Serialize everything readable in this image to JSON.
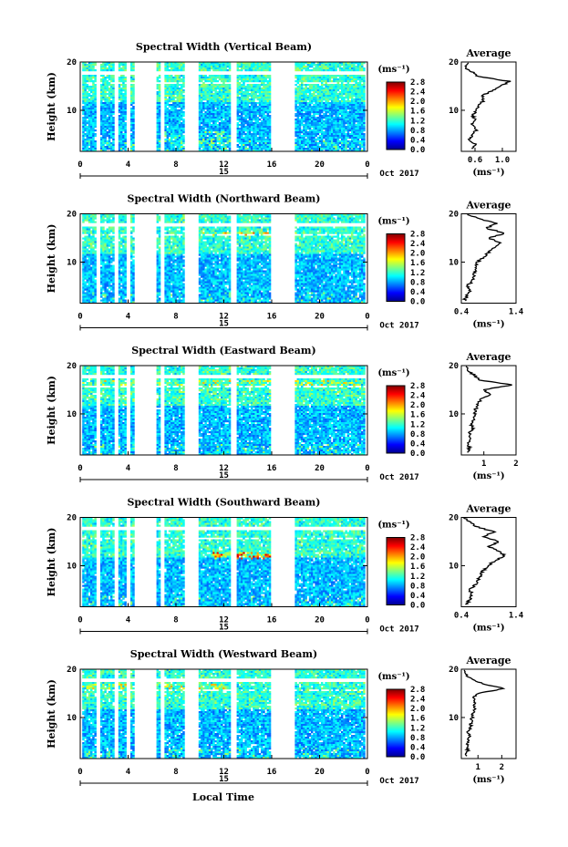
{
  "figure": {
    "date_label": "Oct 2017",
    "day_label": "15",
    "xlabel": "Local Time",
    "ylabel": "Height (km)",
    "avg_title": "Average",
    "cbar_unit": "(ms⁻¹)",
    "avg_xunit": "(ms⁻¹)"
  },
  "chart_data": [
    {
      "type": "heatmap",
      "title": "Spectral Width (Vertical Beam)",
      "xlim": [
        0,
        24
      ],
      "ylim": [
        1.5,
        20
      ],
      "x_ticks": [
        "0",
        "4",
        "8",
        "12",
        "16",
        "20",
        "0"
      ],
      "y_ticks": [
        "20",
        "10"
      ],
      "colorbar": {
        "range": [
          0.0,
          2.8
        ],
        "ticks": [
          "2.8",
          "2.4",
          "2.0",
          "1.6",
          "1.2",
          "0.8",
          "0.4",
          "0.0"
        ],
        "colormap": "jet"
      },
      "data_gaps_hours": [
        [
          0,
          0.1
        ],
        [
          1.3,
          1.6
        ],
        [
          2.8,
          3.1
        ],
        [
          3.7,
          4.1
        ],
        [
          4.4,
          6.3
        ],
        [
          6.7,
          6.9
        ],
        [
          8.7,
          9.8
        ],
        [
          12.5,
          13.0
        ],
        [
          15.8,
          17.8
        ],
        [
          23.7,
          24
        ]
      ],
      "high_values_at": [
        {
          "hours": [
            7.0,
            12.5
          ],
          "km": [
            3,
            6
          ],
          "value": 1.6
        }
      ],
      "average_profile": {
        "xlim": [
          0.4,
          1.2
        ],
        "x_ticks": [
          "0.6",
          "1.0"
        ],
        "values": [
          [
            0.55,
            2
          ],
          [
            0.6,
            3
          ],
          [
            0.5,
            4
          ],
          [
            0.58,
            5
          ],
          [
            0.62,
            6
          ],
          [
            0.55,
            7
          ],
          [
            0.6,
            8
          ],
          [
            0.57,
            9
          ],
          [
            0.62,
            10
          ],
          [
            0.66,
            11
          ],
          [
            0.72,
            12
          ],
          [
            0.7,
            13
          ],
          [
            0.85,
            14
          ],
          [
            0.98,
            15
          ],
          [
            1.1,
            16
          ],
          [
            0.65,
            17
          ],
          [
            0.55,
            18
          ],
          [
            0.45,
            19
          ],
          [
            0.5,
            20
          ]
        ]
      }
    },
    {
      "type": "heatmap",
      "title": "Spectral Width (Northward Beam)",
      "xlim": [
        0,
        24
      ],
      "ylim": [
        1.5,
        20
      ],
      "x_ticks": [
        "0",
        "4",
        "8",
        "12",
        "16",
        "20",
        "0"
      ],
      "y_ticks": [
        "20",
        "10"
      ],
      "colorbar": {
        "range": [
          0.0,
          2.8
        ],
        "ticks": [
          "2.8",
          "2.4",
          "2.0",
          "1.6",
          "1.2",
          "0.8",
          "0.4",
          "0.0"
        ],
        "colormap": "jet"
      },
      "data_gaps_hours": [
        [
          0,
          0.1
        ],
        [
          1.3,
          1.6
        ],
        [
          2.8,
          3.1
        ],
        [
          3.7,
          4.1
        ],
        [
          4.4,
          6.3
        ],
        [
          6.7,
          6.9
        ],
        [
          8.7,
          9.8
        ],
        [
          12.5,
          13.0
        ],
        [
          15.8,
          17.8
        ],
        [
          23.7,
          24
        ]
      ],
      "high_values_at": [
        {
          "hours": [
            10,
            18
          ],
          "km": [
            15.5,
            16.5
          ],
          "value": 2.2
        }
      ],
      "average_profile": {
        "xlim": [
          0.4,
          1.4
        ],
        "x_ticks": [
          "0.4",
          "1.4"
        ],
        "values": [
          [
            0.45,
            2
          ],
          [
            0.5,
            3
          ],
          [
            0.55,
            4
          ],
          [
            0.5,
            5
          ],
          [
            0.6,
            6
          ],
          [
            0.62,
            7
          ],
          [
            0.65,
            8
          ],
          [
            0.68,
            9
          ],
          [
            0.7,
            10
          ],
          [
            0.8,
            11
          ],
          [
            0.9,
            12
          ],
          [
            1.0,
            13
          ],
          [
            1.1,
            14
          ],
          [
            0.9,
            15
          ],
          [
            1.2,
            16
          ],
          [
            0.85,
            17
          ],
          [
            1.05,
            18
          ],
          [
            0.7,
            19
          ],
          [
            0.5,
            20
          ]
        ]
      }
    },
    {
      "type": "heatmap",
      "title": "Spectral Width (Eastward Beam)",
      "xlim": [
        0,
        24
      ],
      "ylim": [
        1.5,
        20
      ],
      "x_ticks": [
        "0",
        "4",
        "8",
        "12",
        "16",
        "20",
        "0"
      ],
      "y_ticks": [
        "20",
        "10"
      ],
      "colorbar": {
        "range": [
          0.0,
          2.8
        ],
        "ticks": [
          "2.8",
          "2.4",
          "2.0",
          "1.6",
          "1.2",
          "0.8",
          "0.4",
          "0.0"
        ],
        "colormap": "jet"
      },
      "data_gaps_hours": [
        [
          0,
          0.1
        ],
        [
          1.3,
          1.6
        ],
        [
          2.8,
          3.1
        ],
        [
          3.7,
          4.1
        ],
        [
          4.4,
          6.3
        ],
        [
          6.7,
          6.9
        ],
        [
          8.7,
          9.8
        ],
        [
          12.5,
          13.0
        ],
        [
          15.8,
          17.8
        ],
        [
          23.7,
          24
        ]
      ],
      "high_values_at": [
        {
          "hours": [
            0,
            24
          ],
          "km": [
            16,
            17
          ],
          "value": 2.0
        }
      ],
      "average_profile": {
        "xlim": [
          0.3,
          2.0
        ],
        "x_ticks": [
          "1",
          "2"
        ],
        "values": [
          [
            0.5,
            2
          ],
          [
            0.55,
            3
          ],
          [
            0.5,
            4
          ],
          [
            0.6,
            5
          ],
          [
            0.55,
            6
          ],
          [
            0.65,
            7
          ],
          [
            0.6,
            8
          ],
          [
            0.7,
            9
          ],
          [
            0.72,
            10
          ],
          [
            0.75,
            11
          ],
          [
            0.8,
            12
          ],
          [
            0.9,
            13
          ],
          [
            1.2,
            14
          ],
          [
            1.0,
            15
          ],
          [
            1.9,
            16
          ],
          [
            0.9,
            17
          ],
          [
            0.7,
            18
          ],
          [
            0.5,
            19
          ],
          [
            0.45,
            20
          ]
        ]
      }
    },
    {
      "type": "heatmap",
      "title": "Spectral Width (Southward Beam)",
      "xlim": [
        0,
        24
      ],
      "ylim": [
        1.5,
        20
      ],
      "x_ticks": [
        "0",
        "4",
        "8",
        "12",
        "16",
        "20",
        "0"
      ],
      "y_ticks": [
        "20",
        "10"
      ],
      "colorbar": {
        "range": [
          0.0,
          2.8
        ],
        "ticks": [
          "2.8",
          "2.4",
          "2.0",
          "1.6",
          "1.2",
          "0.8",
          "0.4",
          "0.0"
        ],
        "colormap": "jet"
      },
      "data_gaps_hours": [
        [
          0,
          0.1
        ],
        [
          1.3,
          1.6
        ],
        [
          2.8,
          3.1
        ],
        [
          3.7,
          4.1
        ],
        [
          4.4,
          6.3
        ],
        [
          6.7,
          6.9
        ],
        [
          8.7,
          9.8
        ],
        [
          12.5,
          13.0
        ],
        [
          15.8,
          17.8
        ],
        [
          23.7,
          24
        ]
      ],
      "high_values_at": [
        {
          "hours": [
            11,
            16
          ],
          "km": [
            11.5,
            13
          ],
          "value": 2.6
        }
      ],
      "average_profile": {
        "xlim": [
          0.4,
          1.4
        ],
        "x_ticks": [
          "0.4",
          "1.4"
        ],
        "values": [
          [
            0.5,
            2
          ],
          [
            0.55,
            3
          ],
          [
            0.6,
            4
          ],
          [
            0.55,
            5
          ],
          [
            0.65,
            6
          ],
          [
            0.7,
            7
          ],
          [
            0.75,
            8
          ],
          [
            0.8,
            9
          ],
          [
            0.9,
            10
          ],
          [
            1.0,
            11
          ],
          [
            1.2,
            12
          ],
          [
            1.1,
            13
          ],
          [
            0.9,
            14
          ],
          [
            1.1,
            15
          ],
          [
            0.8,
            16
          ],
          [
            1.0,
            17
          ],
          [
            0.7,
            18
          ],
          [
            0.55,
            19
          ],
          [
            0.45,
            20
          ]
        ]
      }
    },
    {
      "type": "heatmap",
      "title": "Spectral Width (Westward Beam)",
      "xlim": [
        0,
        24
      ],
      "ylim": [
        1.5,
        20
      ],
      "x_ticks": [
        "0",
        "4",
        "8",
        "12",
        "16",
        "20",
        "0"
      ],
      "y_ticks": [
        "20",
        "10"
      ],
      "colorbar": {
        "range": [
          0.0,
          2.8
        ],
        "ticks": [
          "2.8",
          "2.4",
          "2.0",
          "1.6",
          "1.2",
          "0.8",
          "0.4",
          "0.0"
        ],
        "colormap": "jet"
      },
      "data_gaps_hours": [
        [
          0,
          0.1
        ],
        [
          1.3,
          1.6
        ],
        [
          2.8,
          3.1
        ],
        [
          3.7,
          4.1
        ],
        [
          4.4,
          6.3
        ],
        [
          6.7,
          6.9
        ],
        [
          8.7,
          9.8
        ],
        [
          12.5,
          13.0
        ],
        [
          15.8,
          17.8
        ],
        [
          23.7,
          24
        ]
      ],
      "high_values_at": [
        {
          "hours": [
            0,
            12
          ],
          "km": [
            16,
            17
          ],
          "value": 2.0
        }
      ],
      "average_profile": {
        "xlim": [
          0.3,
          2.6
        ],
        "x_ticks": [
          "1",
          "2"
        ],
        "values": [
          [
            0.5,
            2
          ],
          [
            0.55,
            3
          ],
          [
            0.6,
            4
          ],
          [
            0.55,
            5
          ],
          [
            0.65,
            6
          ],
          [
            0.6,
            7
          ],
          [
            0.7,
            8
          ],
          [
            0.72,
            9
          ],
          [
            0.75,
            10
          ],
          [
            0.8,
            11
          ],
          [
            0.85,
            12
          ],
          [
            0.9,
            13
          ],
          [
            0.8,
            14
          ],
          [
            1.0,
            15
          ],
          [
            2.1,
            16
          ],
          [
            1.2,
            17
          ],
          [
            0.7,
            18
          ],
          [
            0.5,
            19
          ],
          [
            0.45,
            20
          ]
        ]
      }
    }
  ]
}
